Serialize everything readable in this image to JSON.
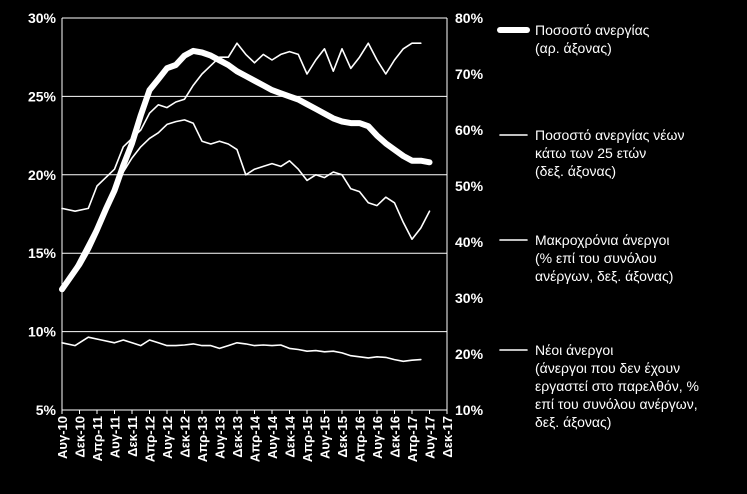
{
  "chart_data": {
    "type": "line",
    "title": "",
    "xlabel": "",
    "ylabel": "",
    "x_tick_labels": [
      "Αυγ-10",
      "Δεκ-10",
      "Απρ-11",
      "Αυγ-11",
      "Δεκ-11",
      "Απρ-12",
      "Αυγ-12",
      "Δεκ-12",
      "Απρ-13",
      "Αυγ-13",
      "Δεκ-13",
      "Απρ-14",
      "Αυγ-14",
      "Δεκ-14",
      "Απρ-15",
      "Αυγ-15",
      "Δεκ-15",
      "Απρ-16",
      "Αυγ-16",
      "Δεκ-16",
      "Απρ-17",
      "Αυγ-17",
      "Δεκ-17"
    ],
    "left_axis": {
      "ticks": [
        "5%",
        "10%",
        "15%",
        "20%",
        "25%",
        "30%"
      ],
      "ylim": [
        5,
        30
      ]
    },
    "right_axis": {
      "ticks": [
        "10%",
        "20%",
        "30%",
        "40%",
        "50%",
        "60%",
        "70%",
        "80%"
      ],
      "ylim": [
        10,
        80
      ]
    },
    "grid": "horizontal",
    "legend_position": "right",
    "series": [
      {
        "name": "Ποσοστό ανεργίας (αρ. άξονας)",
        "axis": "left",
        "style": "thick",
        "points": [
          [
            0,
            12.7
          ],
          [
            2,
            13.5
          ],
          [
            4,
            14.3
          ],
          [
            6,
            15.3
          ],
          [
            8,
            16.5
          ],
          [
            10,
            17.8
          ],
          [
            12,
            19.0
          ],
          [
            14,
            20.6
          ],
          [
            16,
            22.0
          ],
          [
            18,
            23.8
          ],
          [
            20,
            25.4
          ],
          [
            22,
            26.1
          ],
          [
            24,
            26.8
          ],
          [
            26,
            27.0
          ],
          [
            28,
            27.6
          ],
          [
            30,
            27.9
          ],
          [
            32,
            27.8
          ],
          [
            34,
            27.6
          ],
          [
            36,
            27.3
          ],
          [
            38,
            27.0
          ],
          [
            40,
            26.6
          ],
          [
            42,
            26.3
          ],
          [
            44,
            26.0
          ],
          [
            46,
            25.7
          ],
          [
            48,
            25.4
          ],
          [
            50,
            25.2
          ],
          [
            52,
            25.0
          ],
          [
            54,
            24.8
          ],
          [
            56,
            24.5
          ],
          [
            58,
            24.2
          ],
          [
            60,
            23.9
          ],
          [
            62,
            23.6
          ],
          [
            64,
            23.4
          ],
          [
            66,
            23.3
          ],
          [
            68,
            23.3
          ],
          [
            70,
            23.1
          ],
          [
            72,
            22.5
          ],
          [
            74,
            22.0
          ],
          [
            76,
            21.6
          ],
          [
            78,
            21.2
          ],
          [
            80,
            20.9
          ],
          [
            82,
            20.9
          ],
          [
            84,
            20.8
          ]
        ]
      },
      {
        "name": "Ποσοστό ανεργίας νέων κάτω των 25 ετών (δεξ. άξονας)",
        "axis": "right",
        "style": "thin",
        "points": [
          [
            0,
            46.0
          ],
          [
            3,
            45.5
          ],
          [
            6,
            46.0
          ],
          [
            8,
            50.0
          ],
          [
            10,
            51.5
          ],
          [
            12,
            53.0
          ],
          [
            14,
            57.0
          ],
          [
            16,
            58.5
          ],
          [
            18,
            60.0
          ],
          [
            20,
            63.0
          ],
          [
            22,
            64.5
          ],
          [
            24,
            64.0
          ],
          [
            26,
            65.0
          ],
          [
            28,
            65.5
          ],
          [
            30,
            68.0
          ],
          [
            32,
            70.0
          ],
          [
            34,
            71.5
          ],
          [
            36,
            73.0
          ],
          [
            38,
            73.0
          ],
          [
            40,
            75.5
          ],
          [
            42,
            73.5
          ],
          [
            44,
            72.0
          ],
          [
            46,
            73.5
          ],
          [
            48,
            72.5
          ],
          [
            50,
            73.5
          ],
          [
            52,
            74.0
          ],
          [
            54,
            73.5
          ],
          [
            56,
            70.0
          ],
          [
            58,
            72.5
          ],
          [
            60,
            74.5
          ],
          [
            62,
            70.5
          ],
          [
            64,
            74.5
          ],
          [
            66,
            71.0
          ],
          [
            68,
            73.0
          ],
          [
            70,
            75.5
          ],
          [
            72,
            72.5
          ],
          [
            74,
            70.0
          ],
          [
            76,
            72.5
          ],
          [
            78,
            74.5
          ],
          [
            80,
            75.5
          ],
          [
            82,
            75.5
          ]
        ]
      },
      {
        "name": "Μακροχρόνια άνεργοι (% επί του συνόλου ανέργων, δεξ. άξονας)",
        "axis": "right",
        "style": "thin",
        "points": [
          [
            0,
            31.5
          ],
          [
            2,
            34.0
          ],
          [
            4,
            37.0
          ],
          [
            6,
            40.0
          ],
          [
            8,
            43.0
          ],
          [
            10,
            46.0
          ],
          [
            12,
            50.0
          ],
          [
            14,
            52.5
          ],
          [
            16,
            55.0
          ],
          [
            18,
            57.0
          ],
          [
            20,
            58.5
          ],
          [
            22,
            59.5
          ],
          [
            24,
            61.0
          ],
          [
            26,
            61.5
          ],
          [
            28,
            61.8
          ],
          [
            30,
            61.2
          ],
          [
            32,
            58.0
          ],
          [
            34,
            57.5
          ],
          [
            36,
            58.0
          ],
          [
            38,
            57.5
          ],
          [
            40,
            56.5
          ],
          [
            42,
            52.0
          ],
          [
            44,
            53.0
          ],
          [
            46,
            53.5
          ],
          [
            48,
            54.0
          ],
          [
            50,
            53.5
          ],
          [
            52,
            54.5
          ],
          [
            54,
            53.0
          ],
          [
            56,
            51.0
          ],
          [
            58,
            52.0
          ],
          [
            60,
            51.5
          ],
          [
            62,
            52.5
          ],
          [
            64,
            52.0
          ],
          [
            66,
            49.5
          ],
          [
            68,
            49.0
          ],
          [
            70,
            47.0
          ],
          [
            72,
            46.5
          ],
          [
            74,
            48.0
          ],
          [
            76,
            47.0
          ],
          [
            78,
            43.5
          ],
          [
            80,
            40.5
          ],
          [
            82,
            42.5
          ],
          [
            84,
            45.5
          ]
        ]
      },
      {
        "name": "Νέοι άνεργοι (άνεργοι που δεν έχουν εργαστεί στο παρελθόν, % επί του συνόλου ανέργων, δεξ. άξονας)",
        "axis": "right",
        "style": "thin",
        "points": [
          [
            0,
            22.0
          ],
          [
            3,
            21.5
          ],
          [
            6,
            23.0
          ],
          [
            9,
            22.5
          ],
          [
            12,
            22.0
          ],
          [
            14,
            22.5
          ],
          [
            16,
            22.0
          ],
          [
            18,
            21.5
          ],
          [
            20,
            22.5
          ],
          [
            22,
            22.0
          ],
          [
            24,
            21.5
          ],
          [
            26,
            21.5
          ],
          [
            28,
            21.6
          ],
          [
            30,
            21.8
          ],
          [
            32,
            21.5
          ],
          [
            34,
            21.5
          ],
          [
            36,
            21.0
          ],
          [
            38,
            21.5
          ],
          [
            40,
            22.0
          ],
          [
            42,
            21.8
          ],
          [
            44,
            21.5
          ],
          [
            46,
            21.6
          ],
          [
            48,
            21.5
          ],
          [
            50,
            21.6
          ],
          [
            52,
            21.0
          ],
          [
            54,
            20.8
          ],
          [
            56,
            20.5
          ],
          [
            58,
            20.6
          ],
          [
            60,
            20.4
          ],
          [
            62,
            20.5
          ],
          [
            64,
            20.2
          ],
          [
            66,
            19.7
          ],
          [
            68,
            19.5
          ],
          [
            70,
            19.3
          ],
          [
            72,
            19.5
          ],
          [
            74,
            19.4
          ],
          [
            76,
            19.0
          ],
          [
            78,
            18.7
          ],
          [
            80,
            18.9
          ],
          [
            82,
            19.0
          ]
        ]
      }
    ],
    "legend": [
      {
        "label": "Ποσοστό ανεργίας",
        "line2": "(αρ. άξονας)",
        "line3": "",
        "line4": "",
        "style": "thick"
      },
      {
        "label": "Ποσοστό ανεργίας νέων",
        "line2": "κάτω των 25 ετών",
        "line3": "(δεξ. άξονας)",
        "line4": "",
        "style": "thin"
      },
      {
        "label": "Μακροχρόνια άνεργοι",
        "line2": "(% επί του συνόλου",
        "line3": "ανέργων, δεξ. άξονας)",
        "line4": "",
        "style": "thin"
      },
      {
        "label": "Νέοι άνεργοι",
        "line2": "(άνεργοι που δεν έχουν",
        "line3": "εργαστεί στο παρελθόν, %",
        "line4": "επί του συνόλου ανέργων,",
        "line5": "δεξ. άξονας)",
        "style": "thin"
      }
    ]
  },
  "colors": {
    "background": "#000000",
    "line": "#ffffff",
    "grid": "#ffffff"
  }
}
